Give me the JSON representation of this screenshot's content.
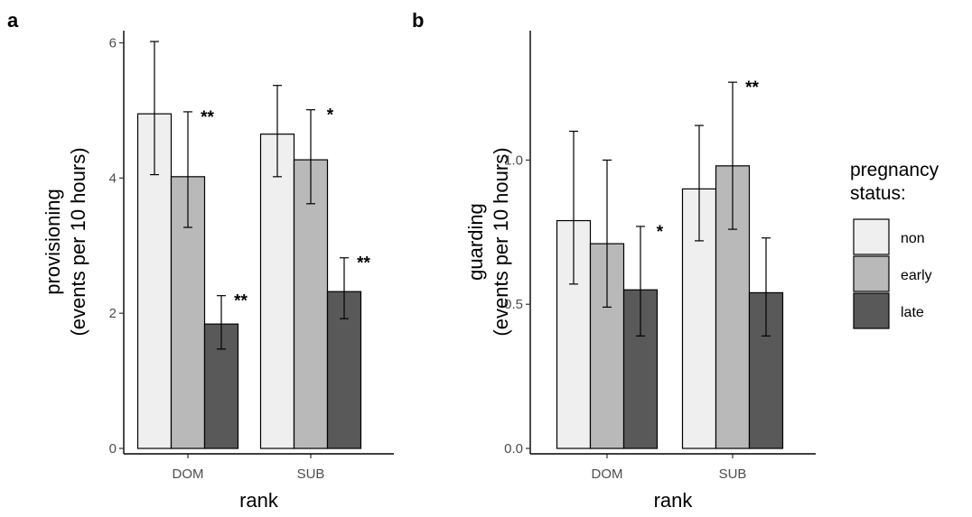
{
  "chart_data": [
    {
      "type": "bar",
      "panel_label": "a",
      "categories": [
        "DOM",
        "SUB"
      ],
      "xlabel": "rank",
      "ylabel": [
        "provisioning",
        "(events per 10 hours)"
      ],
      "ylim": [
        0,
        6.1
      ],
      "yticks": [
        0,
        2,
        4,
        6
      ],
      "ytick_labels": [
        "0",
        "2",
        "4",
        "6"
      ],
      "grid": false,
      "series": [
        {
          "name": "non",
          "values": [
            4.95,
            4.65
          ],
          "error_low": [
            4.05,
            4.02
          ],
          "error_high": [
            6.02,
            5.37
          ],
          "significance": [
            "",
            ""
          ]
        },
        {
          "name": "early",
          "values": [
            4.02,
            4.27
          ],
          "error_low": [
            3.27,
            3.62
          ],
          "error_high": [
            4.98,
            5.01
          ],
          "significance": [
            "**",
            "*"
          ]
        },
        {
          "name": "late",
          "values": [
            1.84,
            2.32
          ],
          "error_low": [
            1.47,
            1.92
          ],
          "error_high": [
            2.26,
            2.82
          ],
          "significance": [
            "**",
            "**"
          ]
        }
      ]
    },
    {
      "type": "bar",
      "panel_label": "b",
      "categories": [
        "DOM",
        "SUB"
      ],
      "xlabel": "rank",
      "ylabel": [
        "guarding",
        "(events per 10 hours)"
      ],
      "ylim": [
        0,
        1.43
      ],
      "yticks": [
        0,
        0.5,
        1.0
      ],
      "ytick_labels": [
        "0.0",
        "0.5",
        "1.0"
      ],
      "grid": false,
      "series": [
        {
          "name": "non",
          "values": [
            0.79,
            0.9
          ],
          "error_low": [
            0.57,
            0.72
          ],
          "error_high": [
            1.1,
            1.12
          ],
          "significance": [
            "",
            ""
          ]
        },
        {
          "name": "early",
          "values": [
            0.71,
            0.98
          ],
          "error_low": [
            0.49,
            0.76
          ],
          "error_high": [
            1.0,
            1.27
          ],
          "significance": [
            "",
            "**"
          ]
        },
        {
          "name": "late",
          "values": [
            0.55,
            0.54
          ],
          "error_low": [
            0.39,
            0.39
          ],
          "error_high": [
            0.77,
            0.73
          ],
          "significance": [
            "*",
            ""
          ]
        }
      ]
    }
  ],
  "legend": {
    "title": [
      "pregnancy",
      "status:"
    ],
    "placement": "right",
    "items": [
      {
        "label": "non",
        "color": "#efefef"
      },
      {
        "label": "early",
        "color": "#b9b9b9"
      },
      {
        "label": "late",
        "color": "#595959"
      }
    ]
  }
}
